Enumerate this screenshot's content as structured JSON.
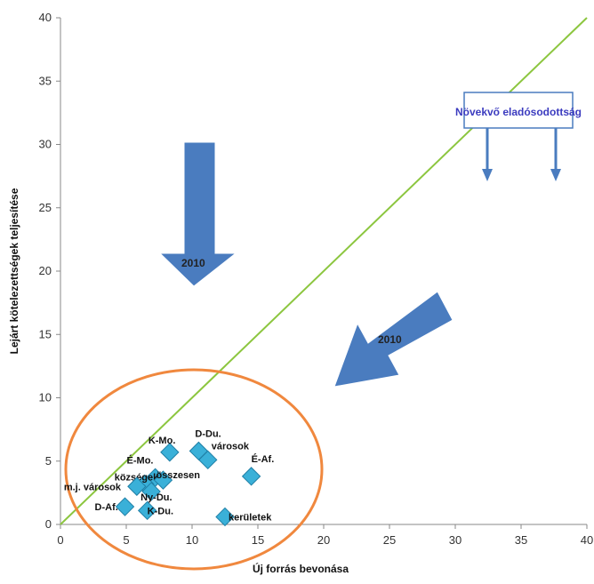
{
  "chart_data": {
    "type": "scatter",
    "xlabel": "Új forrás bevonása",
    "ylabel": "Lejárt kötelezettségek teljesítése",
    "xlim": [
      0,
      40
    ],
    "ylim": [
      0,
      40
    ],
    "x_ticks": [
      "0",
      "5",
      "10",
      "15",
      "20",
      "25",
      "30",
      "35",
      "40"
    ],
    "y_ticks": [
      "0",
      "5",
      "10",
      "15",
      "20",
      "25",
      "30",
      "35",
      "40"
    ],
    "grid": false,
    "reference_line": {
      "from": [
        0,
        0
      ],
      "to": [
        40,
        40
      ],
      "color": "#8cc63f"
    },
    "marker_color": "#3ab0d8",
    "points": [
      {
        "label": "K-Mo.",
        "x": 8.3,
        "y": 5.7
      },
      {
        "label": "D-Du.",
        "x": 10.5,
        "y": 5.8
      },
      {
        "label": "városok",
        "x": 11.2,
        "y": 5.1
      },
      {
        "label": "É-Af.",
        "x": 14.5,
        "y": 3.8
      },
      {
        "label": "É-Mo.",
        "x": 7.2,
        "y": 3.7
      },
      {
        "label": "községek",
        "x": 6.4,
        "y": 3.2
      },
      {
        "label": "összesen",
        "x": 7.8,
        "y": 3.5
      },
      {
        "label": "m.j. városok",
        "x": 5.8,
        "y": 3.0
      },
      {
        "label": "Ny-Du.",
        "x": 6.9,
        "y": 2.6
      },
      {
        "label": "D-Af.",
        "x": 4.9,
        "y": 1.4
      },
      {
        "label": "K-Du.",
        "x": 6.6,
        "y": 1.1
      },
      {
        "label": "kerületek",
        "x": 12.5,
        "y": 0.6
      }
    ],
    "annotations": [
      {
        "text": "Növekvő eladósodottság"
      },
      {
        "text": "2010"
      },
      {
        "text": "2010"
      }
    ]
  },
  "colors": {
    "arrow_blue": "#4a7cbf",
    "ellipse": "#f0883e",
    "callout_border": "#4a7cbf"
  }
}
